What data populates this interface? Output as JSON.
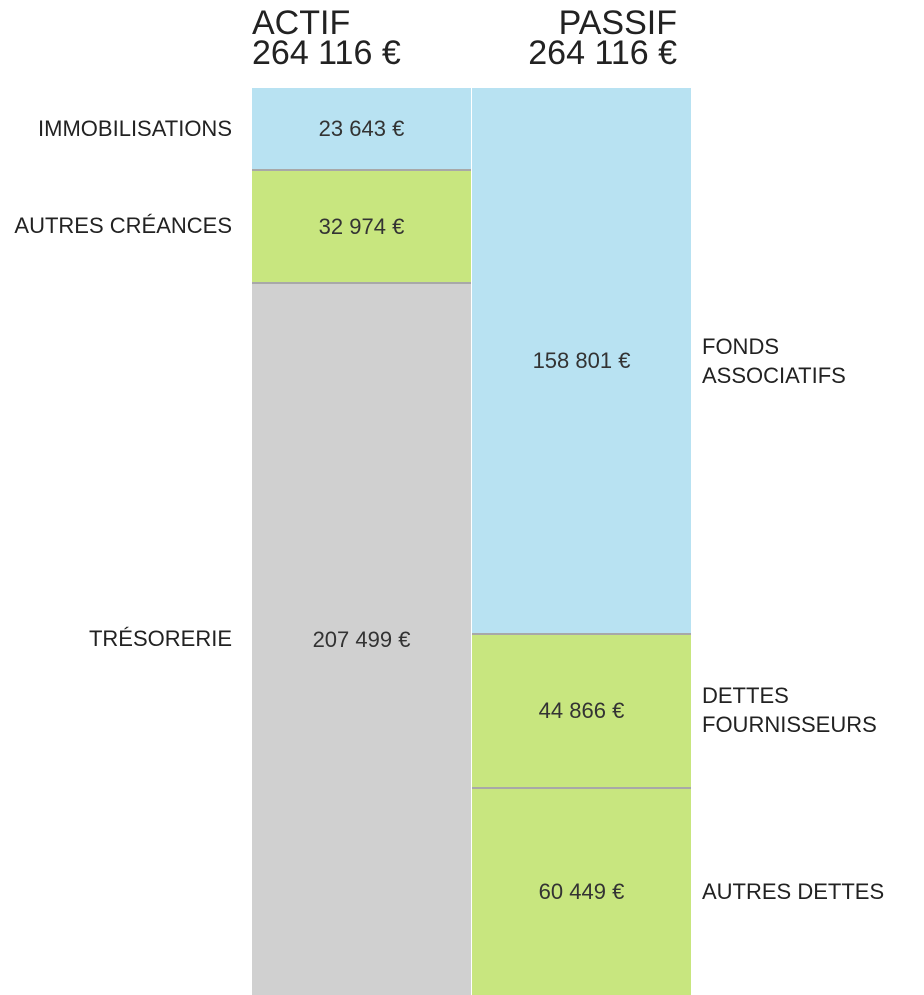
{
  "chart_data": {
    "type": "bar",
    "stacked": true,
    "series": [
      {
        "name": "ACTIF",
        "total_label": "264 116 €",
        "segments": [
          "IMMOBILISATIONS",
          "AUTRES CRÉANCES",
          "TRÉSORERIE"
        ],
        "values": [
          23643,
          32974,
          207499
        ],
        "value_labels": [
          "23 643 €",
          "32 974 €",
          "207 499 €"
        ],
        "colors": [
          "#b8e2f2",
          "#c8e67f",
          "#d0d0d0"
        ]
      },
      {
        "name": "PASSIF",
        "total_label": "264 116 €",
        "segments": [
          "FONDS ASSOCIATIFS",
          "DETTES FOURNISSEURS",
          "AUTRES DETTES"
        ],
        "values": [
          158801,
          44866,
          60449
        ],
        "value_labels": [
          "158 801 €",
          "44 866 €",
          "60 449 €"
        ],
        "colors": [
          "#b8e2f2",
          "#c8e67f",
          "#c8e67f"
        ]
      }
    ]
  }
}
